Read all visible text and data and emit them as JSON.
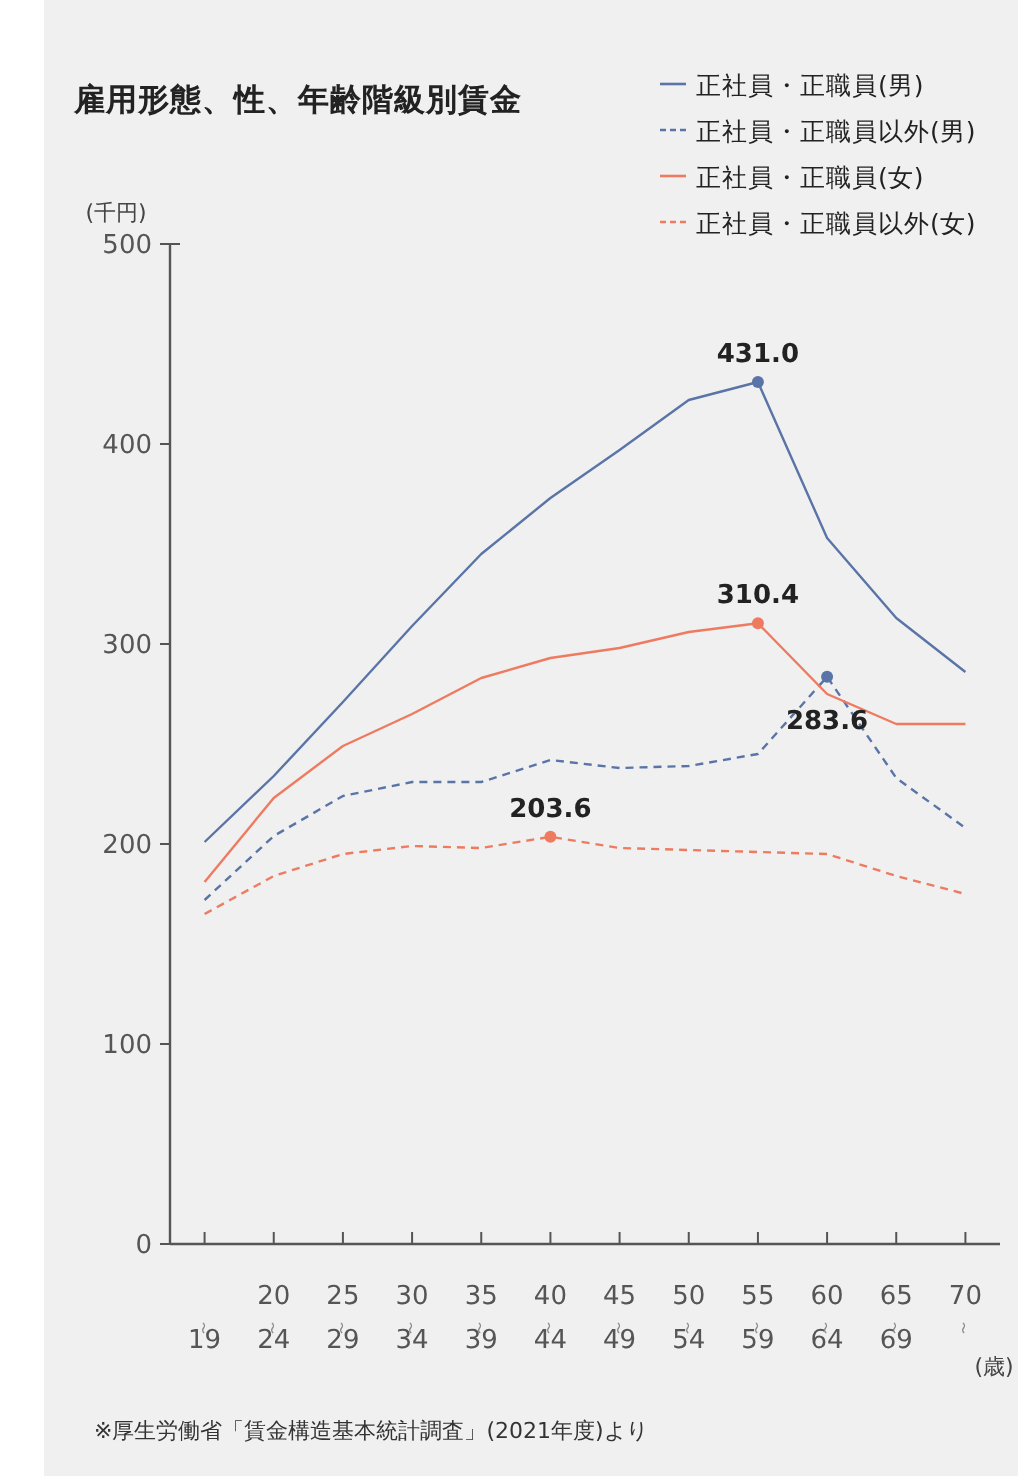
{
  "chart_data": {
    "type": "line",
    "title": "雇用形態、性、年齢階級別賃金",
    "ylabel": "(千円)",
    "xlabel": "(歳)",
    "categories": [
      "〜19",
      "20〜24",
      "25〜29",
      "30〜34",
      "35〜39",
      "40〜44",
      "45〜49",
      "50〜54",
      "55〜59",
      "60〜64",
      "65〜69",
      "70〜"
    ],
    "ylim": [
      0,
      500
    ],
    "yticks": [
      0,
      100,
      200,
      300,
      400,
      500
    ],
    "grid": false,
    "legend": "top right",
    "series": [
      {
        "name": "正社員・正職員(男)",
        "color": "#5a74a8",
        "line_style": "solid",
        "values": [
          201,
          234,
          271,
          309,
          345,
          373,
          397,
          422,
          431.0,
          353,
          313,
          286
        ],
        "value_labels": [
          null,
          null,
          null,
          null,
          null,
          null,
          null,
          null,
          "431.0",
          null,
          null,
          null
        ]
      },
      {
        "name": "正社員・正職員以外(男)",
        "color": "#5a74a8",
        "line_style": "dashed",
        "values": [
          172,
          204,
          224,
          231,
          231,
          242,
          238,
          239,
          245,
          283.6,
          233,
          208
        ],
        "value_labels": [
          null,
          null,
          null,
          null,
          null,
          null,
          null,
          null,
          null,
          "283.6",
          null,
          null
        ]
      },
      {
        "name": "正社員・正職員(女)",
        "color": "#ee7b60",
        "line_style": "solid",
        "values": [
          181,
          223,
          249,
          265,
          283,
          293,
          298,
          306,
          310.4,
          275,
          260,
          260
        ],
        "value_labels": [
          null,
          null,
          null,
          null,
          null,
          null,
          null,
          null,
          "310.4",
          null,
          null,
          null
        ]
      },
      {
        "name": "正社員・正職員以外(女)",
        "color": "#ee7b60",
        "line_style": "dashed",
        "values": [
          165,
          184,
          195,
          199,
          198,
          203.6,
          198,
          197,
          196,
          195,
          184,
          175
        ],
        "value_labels": [
          null,
          null,
          null,
          null,
          null,
          "203.6",
          null,
          null,
          null,
          null,
          null,
          null
        ]
      }
    ],
    "annotations": [
      "※厚生労働省「賃金構造基本統計調査」(2021年度)より"
    ]
  }
}
